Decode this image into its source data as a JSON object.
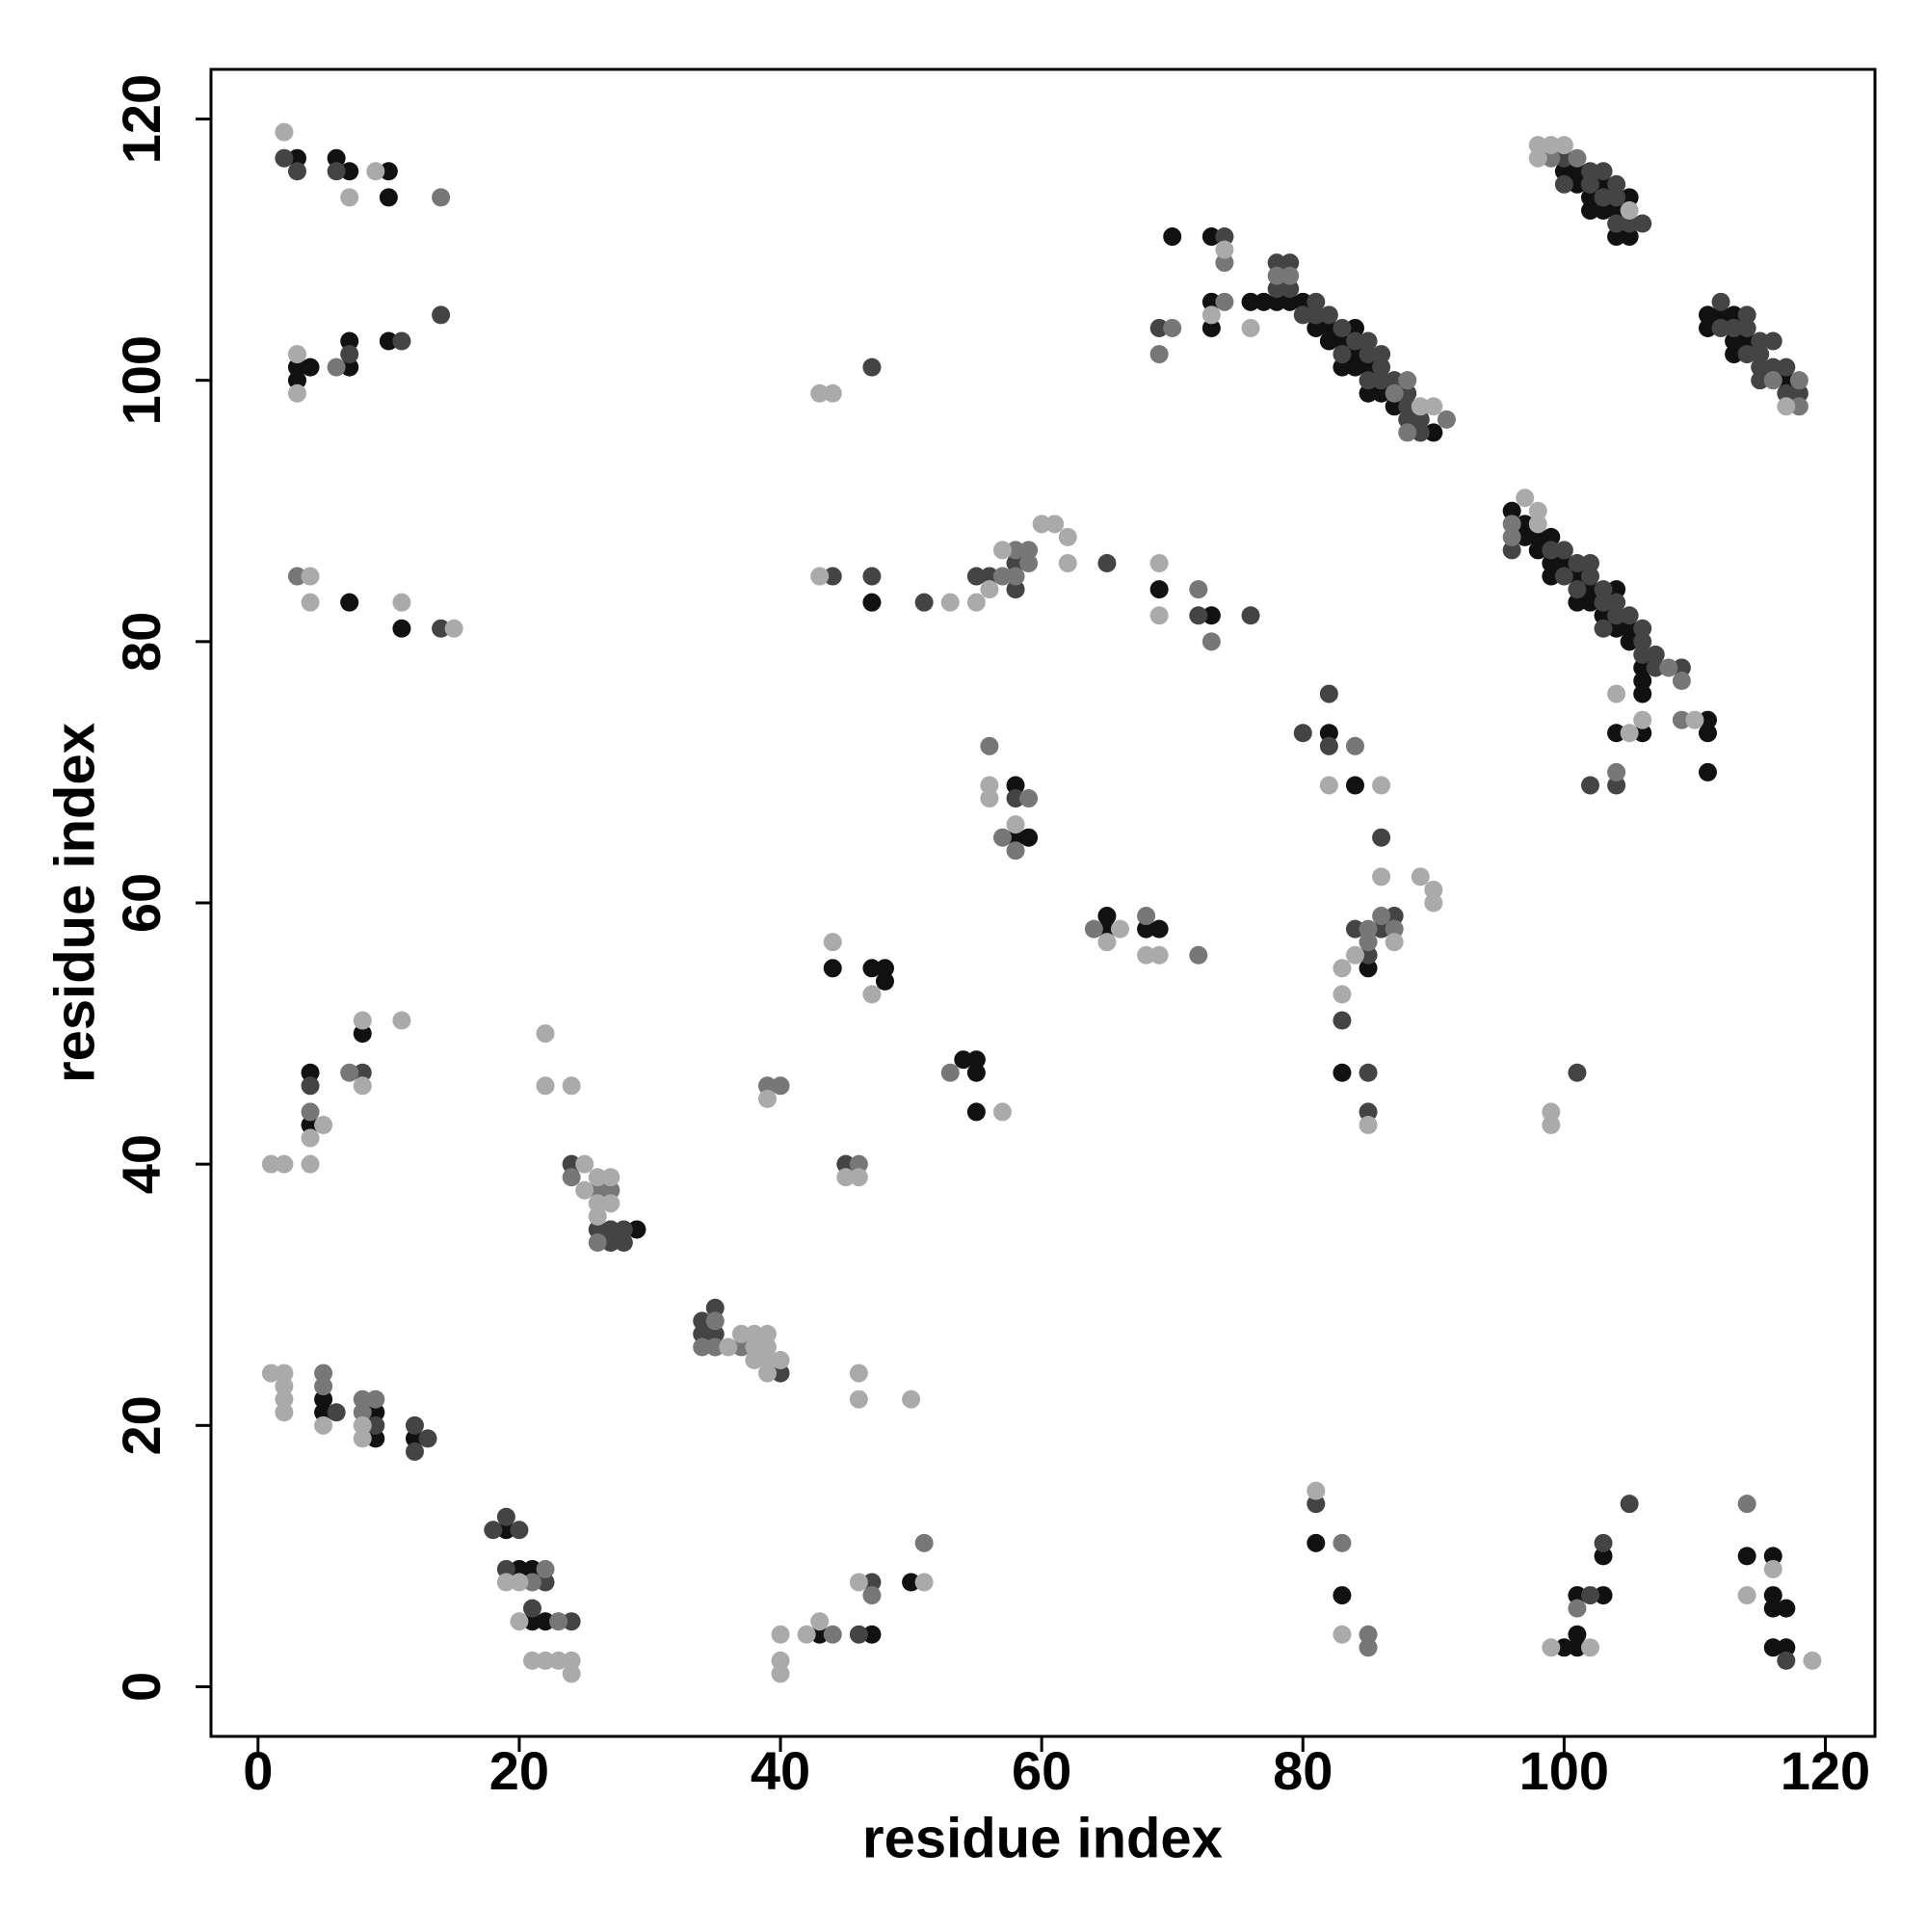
{
  "chart_data": {
    "type": "scatter",
    "x_label": "residue index",
    "y_label": "residue index",
    "xlim": [
      -3.6,
      123.8
    ],
    "ylim": [
      -3.8,
      123.8
    ],
    "xticks": [
      0,
      20,
      40,
      60,
      80,
      100,
      120
    ],
    "yticks": [
      0,
      20,
      40,
      60,
      80,
      100,
      120
    ],
    "grid": false,
    "series": [
      {
        "color": "#111111",
        "x": [
          3,
          6,
          7,
          10,
          10,
          3,
          3,
          4,
          7,
          7,
          10,
          7,
          11,
          4,
          4,
          8,
          5,
          5,
          9,
          9,
          12,
          19,
          20,
          21,
          21,
          22,
          29,
          43,
          47,
          50,
          47,
          44,
          47,
          48,
          48,
          54,
          55,
          55,
          55,
          58,
          58,
          59,
          65,
          65,
          68,
          69,
          69,
          73,
          70,
          73,
          73,
          73,
          76,
          77,
          78,
          79,
          80,
          81,
          82,
          82,
          83,
          84,
          84,
          83,
          84,
          85,
          85,
          86,
          87,
          90,
          100,
          101,
          101,
          102,
          103,
          102,
          103,
          104,
          105,
          104,
          105,
          111,
          112,
          111,
          113,
          114,
          113,
          113,
          117,
          96,
          97,
          97,
          98,
          99,
          98,
          99,
          100,
          99,
          101,
          102,
          104,
          101,
          102,
          103,
          104,
          105,
          105,
          106,
          106,
          106,
          104,
          106,
          111,
          111,
          111,
          82,
          84,
          85,
          83,
          81,
          83,
          100,
          101,
          101,
          101,
          103,
          103,
          114,
          116,
          116,
          116,
          117,
          116,
          117
        ],
        "values": [
          117,
          117,
          116,
          116,
          114,
          101,
          100,
          101,
          101,
          103,
          103,
          83,
          81,
          43,
          47,
          50,
          22,
          21,
          21,
          19,
          19,
          12,
          9,
          9,
          5,
          5,
          35,
          4,
          4,
          8,
          83,
          55,
          55,
          55,
          54,
          48,
          48,
          47,
          44,
          69,
          65,
          65,
          59,
          58,
          58,
          58,
          84,
          82,
          111,
          111,
          106,
          104,
          106,
          106,
          106,
          106,
          106,
          104,
          104,
          103,
          103,
          104,
          102,
          101,
          101,
          101,
          99,
          99,
          98,
          96,
          116,
          116,
          115,
          114,
          115,
          113,
          113,
          113,
          114,
          111,
          111,
          105,
          105,
          104,
          105,
          103,
          103,
          102,
          100,
          90,
          89,
          88,
          88,
          88,
          87,
          86,
          86,
          85,
          85,
          84,
          84,
          83,
          83,
          82,
          81,
          81,
          80,
          78,
          77,
          76,
          73,
          73,
          74,
          73,
          70,
          73,
          69,
          55,
          47,
          11,
          7,
          3,
          3,
          4,
          7,
          7,
          10,
          10,
          10,
          7,
          6,
          6,
          3,
          3
        ]
      },
      {
        "color": "#444444",
        "x": [
          2,
          3,
          6,
          7,
          11,
          14,
          14,
          4,
          8,
          6,
          9,
          12,
          13,
          12,
          18,
          19,
          20,
          19,
          22,
          21,
          24,
          24,
          26,
          27,
          28,
          27,
          28,
          34,
          35,
          34,
          35,
          40,
          45,
          46,
          47,
          47,
          44,
          47,
          51,
          55,
          56,
          58,
          58,
          65,
          58,
          72,
          76,
          69,
          74,
          78,
          79,
          78,
          79,
          80,
          81,
          81,
          82,
          83,
          83,
          84,
          85,
          85,
          85,
          86,
          86,
          86,
          87,
          88,
          88,
          88,
          89,
          89,
          100,
          102,
          100,
          102,
          103,
          103,
          104,
          104,
          104,
          105,
          106,
          112,
          112,
          113,
          114,
          114,
          114,
          115,
          115,
          116,
          115,
          116,
          115,
          117,
          117,
          118,
          96,
          99,
          100,
          101,
          102,
          100,
          102,
          101,
          103,
          103,
          104,
          104,
          105,
          103,
          106,
          106,
          106,
          107,
          107,
          109,
          102,
          104,
          80,
          82,
          82,
          86,
          84,
          86,
          87,
          85,
          83,
          85,
          85,
          101,
          81,
          102,
          103,
          105,
          117
        ],
        "values": [
          117,
          116,
          116,
          102,
          103,
          105,
          81,
          46,
          47,
          21,
          20,
          20,
          19,
          18,
          12,
          13,
          12,
          9,
          8,
          6,
          5,
          40,
          35,
          35,
          35,
          34,
          34,
          28,
          29,
          27,
          27,
          24,
          40,
          4,
          8,
          101,
          85,
          85,
          83,
          85,
          85,
          86,
          84,
          86,
          68,
          82,
          82,
          104,
          111,
          109,
          109,
          107,
          107,
          105,
          106,
          105,
          105,
          104,
          102,
          103,
          103,
          102,
          100,
          102,
          101,
          100,
          100,
          99,
          98,
          97,
          97,
          96,
          117,
          116,
          115,
          115,
          116,
          114,
          115,
          114,
          112,
          112,
          112,
          106,
          104,
          104,
          105,
          104,
          102,
          103,
          102,
          103,
          101,
          101,
          100,
          101,
          99,
          99,
          87,
          87,
          87,
          86,
          86,
          85,
          85,
          84,
          84,
          83,
          83,
          82,
          82,
          81,
          81,
          80,
          79,
          79,
          78,
          78,
          69,
          69,
          73,
          76,
          72,
          65,
          58,
          58,
          59,
          56,
          51,
          47,
          44,
          47,
          14,
          7,
          11,
          14,
          2
        ]
      },
      {
        "color": "#777777",
        "x": [
          14,
          6,
          3,
          4,
          7,
          5,
          5,
          8,
          9,
          8,
          21,
          22,
          23,
          24,
          26,
          27,
          26,
          35,
          34,
          35,
          37,
          39,
          40,
          46,
          44,
          47,
          51,
          57,
          58,
          59,
          59,
          58,
          56,
          57,
          59,
          58,
          64,
          68,
          72,
          72,
          73,
          70,
          69,
          74,
          74,
          78,
          79,
          87,
          88,
          88,
          91,
          99,
          101,
          116,
          118,
          118,
          96,
          96,
          108,
          109,
          109,
          104,
          84,
          85,
          86,
          87,
          85,
          83,
          85,
          85,
          101,
          114,
          53
        ],
        "values": [
          114,
          101,
          85,
          44,
          47,
          24,
          23,
          22,
          22,
          21,
          8,
          9,
          5,
          39,
          38,
          38,
          34,
          28,
          26,
          26,
          26,
          46,
          46,
          40,
          4,
          7,
          11,
          85,
          87,
          87,
          86,
          85,
          72,
          65,
          68,
          64,
          58,
          59,
          56,
          84,
          80,
          104,
          102,
          109,
          106,
          108,
          108,
          99,
          100,
          96,
          97,
          117,
          117,
          100,
          100,
          98,
          89,
          88,
          78,
          77,
          74,
          70,
          72,
          58,
          59,
          58,
          57,
          11,
          4,
          3,
          6,
          14,
          47
        ]
      },
      {
        "color": "#aaaaaa",
        "x": [
          2,
          7,
          9,
          3,
          3,
          4,
          4,
          11,
          15,
          1,
          2,
          4,
          4,
          5,
          8,
          8,
          11,
          2,
          1,
          2,
          2,
          2,
          5,
          8,
          8,
          19,
          20,
          20,
          21,
          22,
          23,
          24,
          24,
          22,
          22,
          24,
          25,
          25,
          26,
          27,
          26,
          27,
          26,
          36,
          37,
          38,
          39,
          38,
          39,
          38,
          39,
          40,
          39,
          39,
          45,
          46,
          46,
          46,
          50,
          40,
          40,
          40,
          42,
          43,
          46,
          51,
          43,
          44,
          43,
          53,
          55,
          56,
          57,
          60,
          61,
          62,
          62,
          44,
          47,
          57,
          56,
          56,
          58,
          65,
          66,
          68,
          69,
          69,
          69,
          74,
          73,
          76,
          89,
          90,
          98,
          99,
          100,
          98,
          105,
          117,
          97,
          98,
          98,
          104,
          105,
          106,
          110,
          82,
          86,
          86,
          89,
          90,
          90,
          87,
          84,
          83,
          83,
          85,
          99,
          99,
          81,
          83,
          99,
          102,
          114,
          116,
          119
        ],
        "values": [
          119,
          114,
          116,
          102,
          99,
          85,
          83,
          83,
          81,
          40,
          40,
          40,
          42,
          43,
          51,
          46,
          51,
          24,
          24,
          23,
          22,
          21,
          20,
          20,
          19,
          8,
          8,
          5,
          2,
          2,
          2,
          2,
          1,
          50,
          46,
          46,
          40,
          38,
          39,
          39,
          37,
          37,
          36,
          26,
          27,
          27,
          27,
          26,
          26,
          25,
          25,
          25,
          24,
          45,
          39,
          39,
          24,
          22,
          22,
          4,
          2,
          1,
          4,
          5,
          8,
          8,
          99,
          99,
          85,
          83,
          83,
          84,
          87,
          89,
          89,
          88,
          86,
          57,
          53,
          44,
          69,
          68,
          66,
          57,
          58,
          56,
          56,
          86,
          82,
          110,
          105,
          104,
          98,
          98,
          118,
          118,
          118,
          117,
          113,
          98,
          91,
          90,
          89,
          76,
          73,
          74,
          74,
          69,
          69,
          62,
          62,
          61,
          60,
          57,
          56,
          55,
          53,
          43,
          44,
          43,
          15,
          4,
          3,
          3,
          7,
          9,
          2
        ]
      }
    ]
  }
}
